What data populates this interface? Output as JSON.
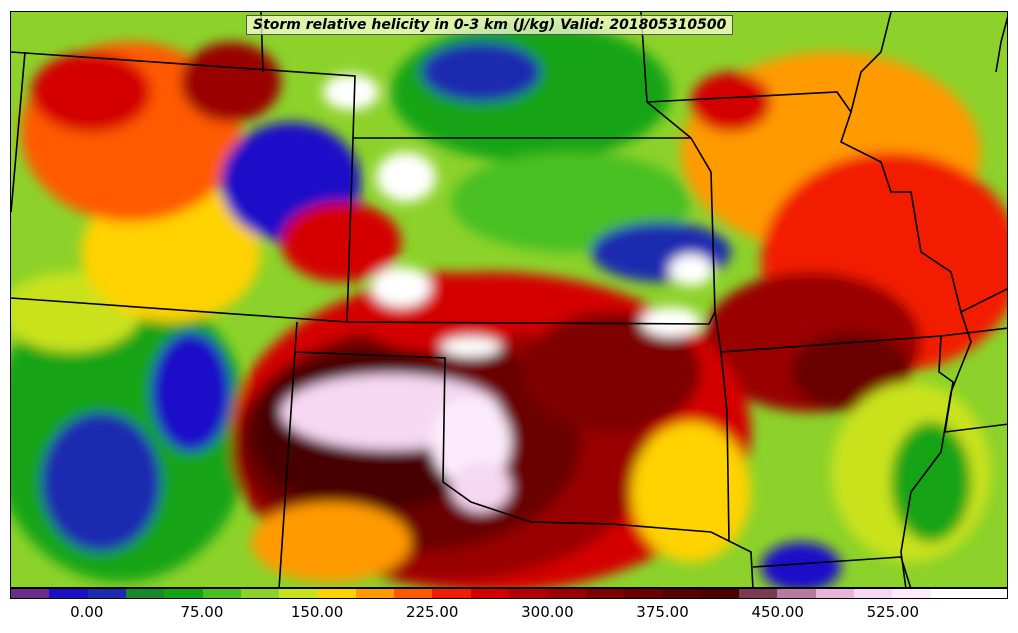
{
  "title": "Storm relative helicity in 0-3 km (J/kg) Valid: 201805310500",
  "colorbar": {
    "tick_labels": [
      "0.00",
      "75.00",
      "150.00",
      "225.00",
      "300.00",
      "375.00",
      "450.00",
      "525.00"
    ],
    "tick_values": [
      0,
      75,
      150,
      225,
      300,
      375,
      450,
      525
    ],
    "range": [
      -50,
      600
    ],
    "level_step": 25,
    "colors": [
      "#6a2e8a",
      "#1a10c8",
      "#1c2bb0",
      "#168a2a",
      "#12a412",
      "#48c020",
      "#8cd22a",
      "#c9e21c",
      "#ffd200",
      "#ff9a00",
      "#ff5a00",
      "#f21c00",
      "#d40000",
      "#b20000",
      "#9a0000",
      "#7e0000",
      "#6a0000",
      "#580000",
      "#4a0000",
      "#7a3a52",
      "#b87aa2",
      "#e8b4dc",
      "#f6d8f2",
      "#fcecfb",
      "#ffffff",
      "#ffffff"
    ]
  }
}
